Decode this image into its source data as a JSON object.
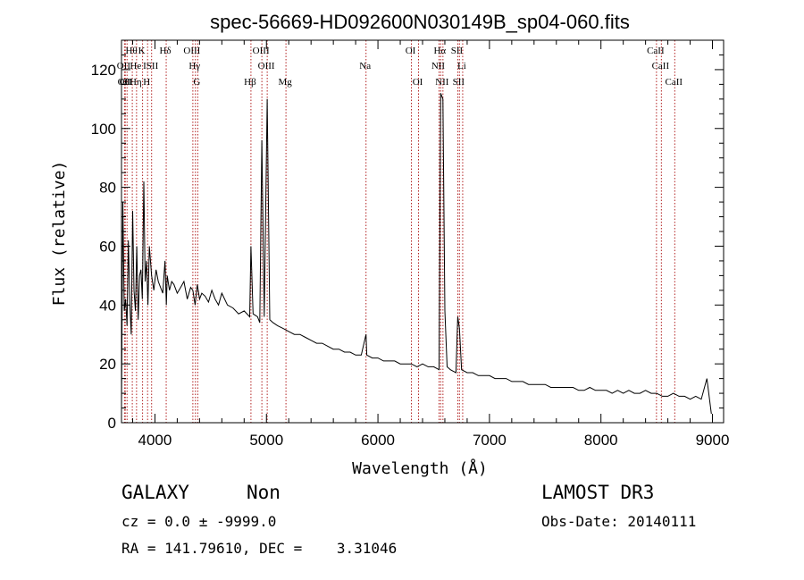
{
  "chart_data": {
    "type": "line",
    "title": "spec-56669-HD092600N030149B_sp04-060.fits",
    "xlabel": "Wavelength (Å)",
    "ylabel": "Flux (relative)",
    "xlim": [
      3700,
      9100
    ],
    "ylim": [
      0,
      130
    ],
    "xticks": [
      4000,
      5000,
      6000,
      7000,
      8000,
      9000
    ],
    "xtick_labels": [
      "4000",
      "5000",
      "6000",
      "7000",
      "8000",
      "9000"
    ],
    "yticks": [
      0,
      20,
      40,
      60,
      80,
      100,
      120
    ],
    "ytick_labels": [
      "0",
      "20",
      "40",
      "60",
      "80",
      "100",
      "120"
    ],
    "line_color": "#000000",
    "marker_color": "#b22222",
    "series": [
      {
        "name": "flux",
        "x": [
          3700,
          3712,
          3725,
          3737,
          3750,
          3762,
          3775,
          3787,
          3800,
          3812,
          3825,
          3837,
          3850,
          3862,
          3875,
          3887,
          3900,
          3912,
          3925,
          3937,
          3950,
          3970,
          3990,
          4010,
          4030,
          4050,
          4070,
          4090,
          4102,
          4110,
          4130,
          4150,
          4170,
          4200,
          4230,
          4260,
          4290,
          4320,
          4340,
          4360,
          4380,
          4400,
          4420,
          4450,
          4480,
          4510,
          4540,
          4570,
          4600,
          4650,
          4700,
          4750,
          4800,
          4850,
          4861,
          4880,
          4920,
          4940,
          4959,
          4980,
          5007,
          5030,
          5060,
          5100,
          5150,
          5200,
          5250,
          5300,
          5350,
          5400,
          5450,
          5500,
          5550,
          5600,
          5650,
          5700,
          5750,
          5800,
          5850,
          5893,
          5900,
          5950,
          6000,
          6050,
          6100,
          6150,
          6200,
          6250,
          6300,
          6350,
          6400,
          6450,
          6500,
          6548,
          6563,
          6583,
          6600,
          6620,
          6650,
          6700,
          6716,
          6731,
          6750,
          6800,
          6850,
          6900,
          6950,
          7000,
          7050,
          7100,
          7150,
          7200,
          7250,
          7300,
          7350,
          7400,
          7450,
          7500,
          7550,
          7600,
          7650,
          7700,
          7750,
          7800,
          7850,
          7900,
          7950,
          8000,
          8050,
          8100,
          8150,
          8200,
          8250,
          8300,
          8350,
          8400,
          8450,
          8500,
          8550,
          8600,
          8650,
          8700,
          8750,
          8800,
          8850,
          8900,
          8950,
          8990
        ],
        "y": [
          5,
          75,
          38,
          42,
          33,
          62,
          40,
          30,
          72,
          45,
          38,
          60,
          35,
          50,
          52,
          42,
          82,
          48,
          55,
          40,
          60,
          50,
          45,
          52,
          48,
          46,
          44,
          55,
          40,
          50,
          45,
          48,
          47,
          44,
          46,
          48,
          42,
          46,
          45,
          40,
          47,
          42,
          44,
          43,
          41,
          45,
          42,
          40,
          44,
          40,
          39,
          37,
          38,
          36,
          60,
          37,
          36,
          34,
          96,
          36,
          110,
          35,
          34,
          33,
          32,
          31,
          30,
          30,
          29,
          28,
          27,
          27,
          26,
          25,
          25,
          24,
          24,
          23,
          23,
          30,
          23,
          22,
          22,
          21,
          21,
          21,
          20,
          20,
          20,
          19,
          20,
          19,
          19,
          18,
          112,
          110,
          38,
          19,
          18,
          17,
          36,
          32,
          18,
          17,
          17,
          16,
          16,
          16,
          15,
          15,
          15,
          14,
          14,
          14,
          13,
          13,
          13,
          13,
          12,
          12,
          12,
          12,
          12,
          11,
          11,
          12,
          11,
          11,
          11,
          10,
          11,
          10,
          11,
          10,
          10,
          11,
          10,
          10,
          9,
          9,
          10,
          9,
          9,
          8,
          9,
          8,
          15,
          3
        ]
      }
    ],
    "lines": [
      {
        "wavelength": 3727,
        "label": "OII",
        "row": 2
      },
      {
        "wavelength": 3734,
        "label": "OII",
        "row": 3
      },
      {
        "wavelength": 3750,
        "label": "OII",
        "row": 3
      },
      {
        "wavelength": 3797,
        "label": "Hθ",
        "row": 1
      },
      {
        "wavelength": 3835,
        "label": "He",
        "row": 2
      },
      {
        "wavelength": 3835,
        "label": "Hη",
        "row": 3
      },
      {
        "wavelength": 3889,
        "label": "K",
        "row": 1
      },
      {
        "wavelength": 3934,
        "label": "H",
        "row": 3
      },
      {
        "wavelength": 3970,
        "label": "ISII",
        "row": 2
      },
      {
        "wavelength": 4101,
        "label": "Hδ",
        "row": 1
      },
      {
        "wavelength": 4340,
        "label": "OIII",
        "row": 1
      },
      {
        "wavelength": 4363,
        "label": "Hγ",
        "row": 2
      },
      {
        "wavelength": 4384,
        "label": "G",
        "row": 3
      },
      {
        "wavelength": 4861,
        "label": "Hβ",
        "row": 3
      },
      {
        "wavelength": 4959,
        "label": "OIII",
        "row": 1
      },
      {
        "wavelength": 5007,
        "label": "OIII",
        "row": 2
      },
      {
        "wavelength": 5175,
        "label": "Mg",
        "row": 3
      },
      {
        "wavelength": 5893,
        "label": "Na",
        "row": 2
      },
      {
        "wavelength": 6300,
        "label": "OI",
        "row": 1
      },
      {
        "wavelength": 6364,
        "label": "OI",
        "row": 3
      },
      {
        "wavelength": 6548,
        "label": "NII",
        "row": 2
      },
      {
        "wavelength": 6563,
        "label": "Hα",
        "row": 1
      },
      {
        "wavelength": 6583,
        "label": "NII",
        "row": 3
      },
      {
        "wavelength": 6716,
        "label": "SII",
        "row": 1
      },
      {
        "wavelength": 6731,
        "label": "SII",
        "row": 3
      },
      {
        "wavelength": 6760,
        "label": "Li",
        "row": 2
      },
      {
        "wavelength": 8498,
        "label": "CaII",
        "row": 1
      },
      {
        "wavelength": 8542,
        "label": "CaII",
        "row": 2
      },
      {
        "wavelength": 8662,
        "label": "CaII",
        "row": 3
      }
    ]
  },
  "footer": {
    "class_label": "GALAXY",
    "subclass_label": "Non",
    "survey_label": "LAMOST DR3",
    "cz_text": "cz = 0.0 ± -9999.0",
    "obs_date_text": "Obs-Date: 20140111",
    "coords_text": "RA = 141.79610, DEC =    3.31046"
  }
}
